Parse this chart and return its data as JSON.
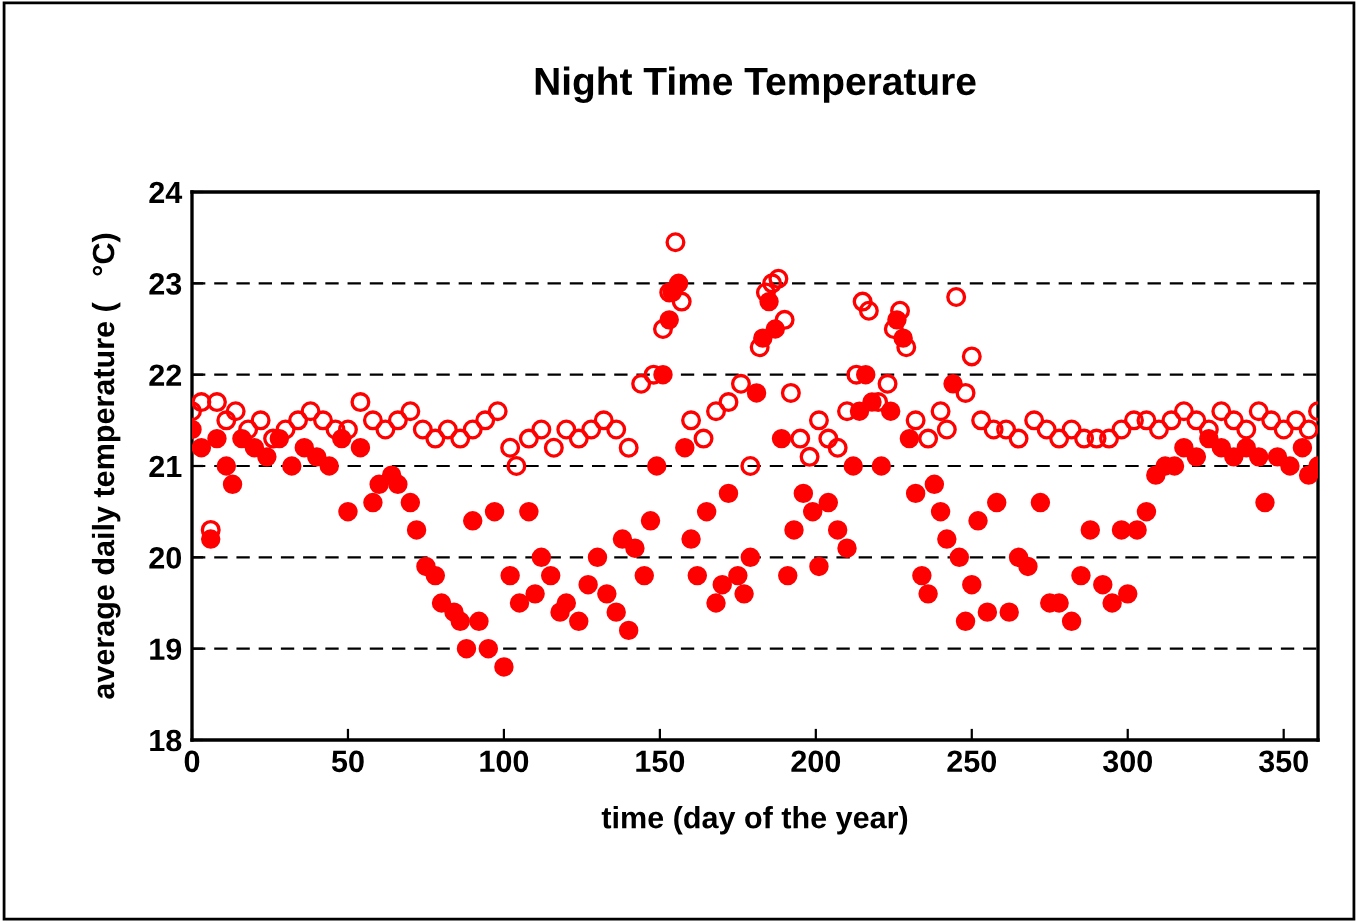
{
  "chart_data": {
    "type": "scatter",
    "title": "Night Time Temperature",
    "xlabel": "time (day of the year)",
    "ylabel": "average daily temperature (   °C)",
    "xlim": [
      0,
      361
    ],
    "xticks": [
      0,
      50,
      100,
      150,
      200,
      250,
      300,
      350
    ],
    "ylim": [
      18,
      24
    ],
    "yticks": [
      18,
      19,
      20,
      21,
      22,
      23,
      24
    ],
    "grid": "y",
    "legend": false,
    "marker": "circle",
    "series": [
      {
        "color": "#ff0000",
        "x": [
          0,
          3,
          6,
          8,
          11,
          14,
          18,
          22,
          26,
          30,
          34,
          38,
          42,
          46,
          50,
          54,
          58,
          62,
          66,
          70,
          74,
          78,
          82,
          86,
          90,
          94,
          98,
          102,
          104,
          108,
          112,
          116,
          120,
          124,
          128,
          132,
          136,
          140,
          144,
          148,
          151,
          153,
          155,
          157,
          160,
          164,
          168,
          172,
          176,
          179,
          182,
          184,
          186,
          188,
          190,
          192,
          195,
          198,
          201,
          204,
          207,
          210,
          213,
          215,
          217,
          220,
          223,
          225,
          227,
          229,
          232,
          236,
          240,
          242,
          245,
          248,
          250,
          253,
          257,
          261,
          265,
          270,
          274,
          278,
          282,
          286,
          290,
          294,
          298,
          302,
          306,
          310,
          314,
          318,
          322,
          326,
          330,
          334,
          338,
          342,
          346,
          350,
          354,
          358,
          361
        ],
        "values": [
          21.6,
          21.7,
          20.3,
          21.7,
          21.5,
          21.6,
          21.4,
          21.5,
          21.3,
          21.4,
          21.5,
          21.6,
          21.5,
          21.4,
          21.4,
          21.7,
          21.5,
          21.4,
          21.5,
          21.6,
          21.4,
          21.3,
          21.4,
          21.3,
          21.4,
          21.5,
          21.6,
          21.2,
          21.0,
          21.3,
          21.4,
          21.2,
          21.4,
          21.3,
          21.4,
          21.5,
          21.4,
          21.2,
          21.9,
          22.0,
          22.5,
          22.9,
          23.45,
          22.8,
          21.5,
          21.3,
          21.6,
          21.7,
          21.9,
          21.0,
          22.3,
          22.9,
          23.0,
          23.05,
          22.6,
          21.8,
          21.3,
          21.1,
          21.5,
          21.3,
          21.2,
          21.6,
          22.0,
          22.8,
          22.7,
          21.7,
          21.9,
          22.5,
          22.7,
          22.3,
          21.5,
          21.3,
          21.6,
          21.4,
          22.85,
          21.8,
          22.2,
          21.5,
          21.4,
          21.4,
          21.3,
          21.5,
          21.4,
          21.3,
          21.4,
          21.3,
          21.3,
          21.3,
          21.4,
          21.5,
          21.5,
          21.4,
          21.5,
          21.6,
          21.5,
          21.4,
          21.6,
          21.5,
          21.4,
          21.6,
          21.5,
          21.4,
          21.5,
          21.4,
          21.6
        ]
      },
      {
        "color": "#ff0000",
        "x": [
          0,
          3,
          6,
          8,
          11,
          13,
          16,
          20,
          24,
          28,
          32,
          36,
          40,
          44,
          48,
          50,
          54,
          58,
          60,
          64,
          66,
          70,
          72,
          75,
          78,
          80,
          84,
          86,
          88,
          90,
          92,
          95,
          97,
          100,
          102,
          105,
          108,
          110,
          112,
          115,
          118,
          120,
          124,
          127,
          130,
          133,
          136,
          138,
          140,
          142,
          145,
          147,
          149,
          151,
          153,
          154,
          156,
          158,
          160,
          162,
          165,
          168,
          170,
          172,
          175,
          177,
          179,
          181,
          183,
          185,
          187,
          189,
          191,
          193,
          196,
          199,
          201,
          204,
          207,
          210,
          212,
          214,
          216,
          218,
          221,
          224,
          226,
          228,
          230,
          232,
          234,
          236,
          238,
          240,
          242,
          244,
          246,
          248,
          250,
          252,
          255,
          258,
          262,
          265,
          268,
          272,
          275,
          278,
          282,
          285,
          288,
          292,
          295,
          298,
          300,
          303,
          306,
          309,
          312,
          315,
          318,
          322,
          326,
          330,
          334,
          338,
          342,
          344,
          348,
          352,
          356,
          358,
          361
        ],
        "values": [
          21.4,
          21.2,
          20.2,
          21.3,
          21.0,
          20.8,
          21.3,
          21.2,
          21.1,
          21.3,
          21.0,
          21.2,
          21.1,
          21.0,
          21.3,
          20.5,
          21.2,
          20.6,
          20.8,
          20.9,
          20.8,
          20.6,
          20.3,
          19.9,
          19.8,
          19.5,
          19.4,
          19.3,
          19.0,
          20.4,
          19.3,
          19.0,
          20.5,
          18.8,
          19.8,
          19.5,
          20.5,
          19.6,
          20.0,
          19.8,
          19.4,
          19.5,
          19.3,
          19.7,
          20.0,
          19.6,
          19.4,
          20.2,
          19.2,
          20.1,
          19.8,
          20.4,
          21.0,
          22.0,
          22.6,
          22.9,
          23.0,
          21.2,
          20.2,
          19.8,
          20.5,
          19.5,
          19.7,
          20.7,
          19.8,
          19.6,
          20.0,
          21.8,
          22.4,
          22.8,
          22.5,
          21.3,
          19.8,
          20.3,
          20.7,
          20.5,
          19.9,
          20.6,
          20.3,
          20.1,
          21.0,
          21.6,
          22.0,
          21.7,
          21.0,
          21.6,
          22.6,
          22.4,
          21.3,
          20.7,
          19.8,
          19.6,
          20.8,
          20.5,
          20.2,
          21.9,
          20.0,
          19.3,
          19.7,
          20.4,
          19.4,
          20.6,
          19.4,
          20.0,
          19.9,
          20.6,
          19.5,
          19.5,
          19.3,
          19.8,
          20.3,
          19.7,
          19.5,
          20.3,
          19.6,
          20.3,
          20.5,
          20.9,
          21.0,
          21.0,
          21.2,
          21.1,
          21.3,
          21.2,
          21.1,
          21.2,
          21.1,
          20.6,
          21.1,
          21.0,
          21.2,
          20.9,
          21.0
        ]
      }
    ]
  }
}
